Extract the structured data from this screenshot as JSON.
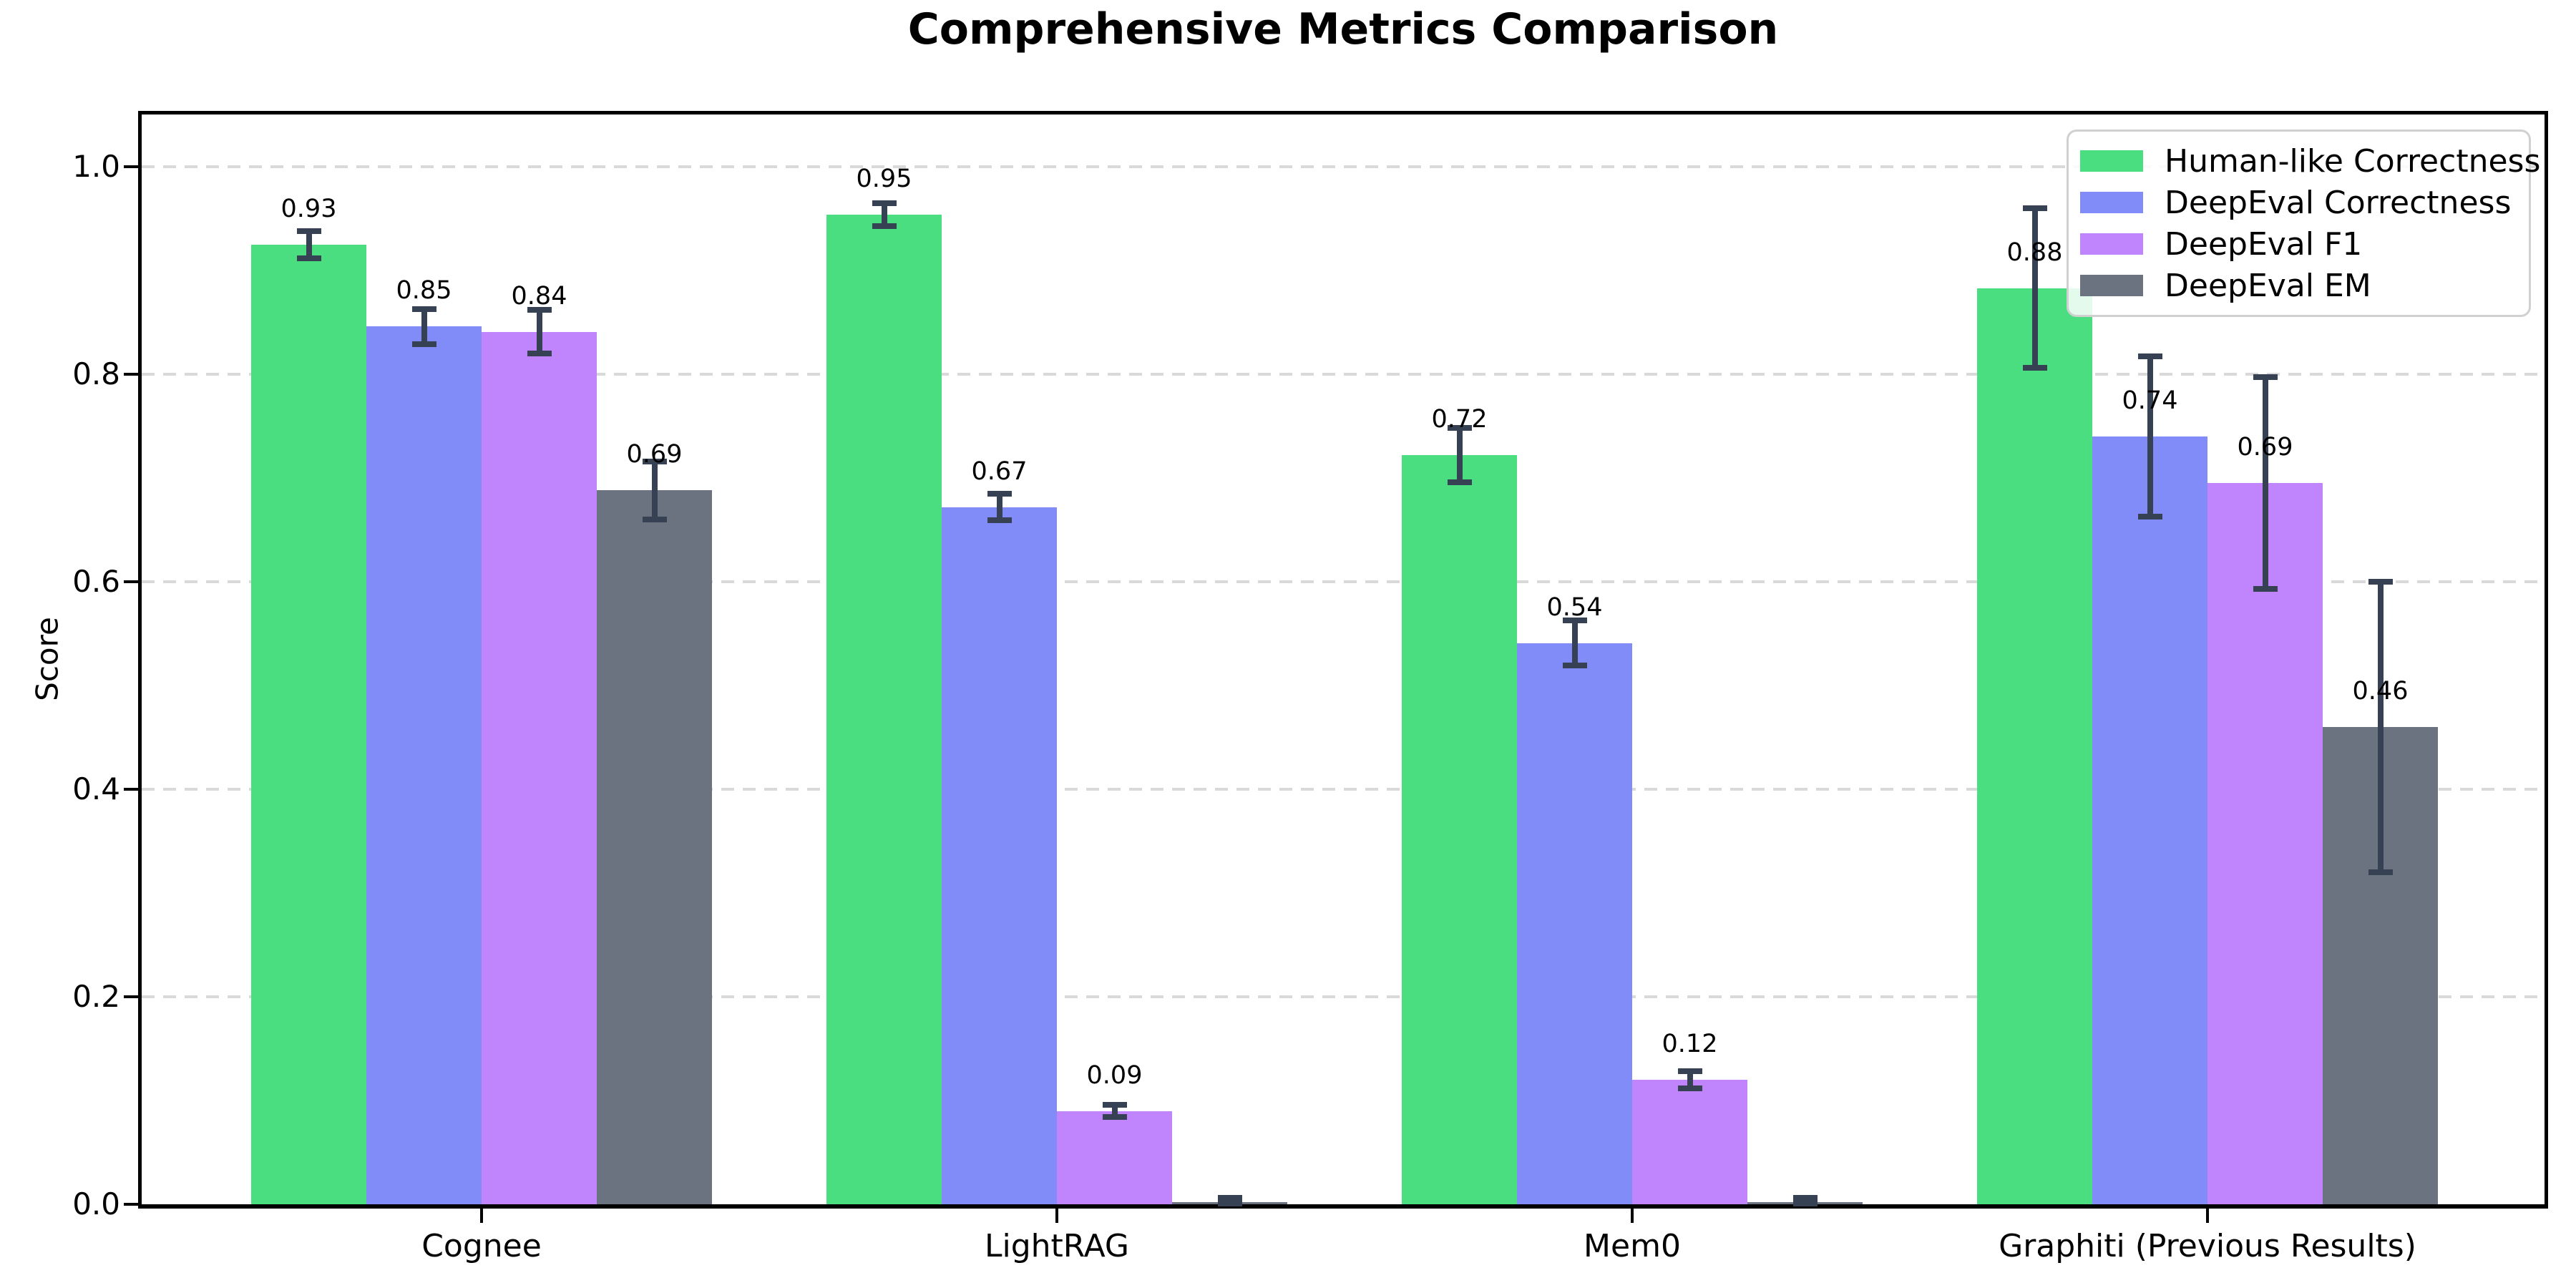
{
  "title": "Comprehensive Metrics Comparison",
  "chart_data": {
    "type": "bar",
    "title": "Comprehensive Metrics Comparison",
    "xlabel": "",
    "ylabel": "Score",
    "ylim": [
      0,
      1.05
    ],
    "yticks": [
      "0.0",
      "0.2",
      "0.4",
      "0.6",
      "0.8",
      "1.0"
    ],
    "grid": "horizontal-dashed",
    "grid_color": "#d9d9d9",
    "axis_color": "#000000",
    "error_bar_color": "#364153",
    "legend_position": "upper right",
    "categories": [
      "Cognee",
      "LightRAG",
      "Mem0",
      "Graphiti (Previous Results)"
    ],
    "series": [
      {
        "name": "Human-like Correctness",
        "color": "#4ade80",
        "values": [
          0.925,
          0.954,
          0.722,
          0.883
        ],
        "labels": [
          "0.93",
          "0.95",
          "0.72",
          "0.88"
        ],
        "errors": [
          0.013,
          0.011,
          0.026,
          0.077
        ]
      },
      {
        "name": "DeepEval Correctness",
        "color": "#818cf8",
        "values": [
          0.846,
          0.672,
          0.541,
          0.74
        ],
        "labels": [
          "0.85",
          "0.67",
          "0.54",
          "0.74"
        ],
        "errors": [
          0.017,
          0.013,
          0.022,
          0.077
        ]
      },
      {
        "name": "DeepEval F1",
        "color": "#c084fc",
        "values": [
          0.841,
          0.09,
          0.12,
          0.695
        ],
        "labels": [
          "0.84",
          "0.09",
          "0.12",
          "0.69"
        ],
        "errors": [
          0.021,
          0.006,
          0.008,
          0.102
        ]
      },
      {
        "name": "DeepEval EM",
        "color": "#6b7280",
        "values": [
          0.688,
          0.002,
          0.002,
          0.46
        ],
        "labels": [
          "0.69",
          "",
          "",
          "0.46"
        ],
        "errors": [
          0.028,
          0.004,
          0.004,
          0.14
        ]
      }
    ]
  }
}
